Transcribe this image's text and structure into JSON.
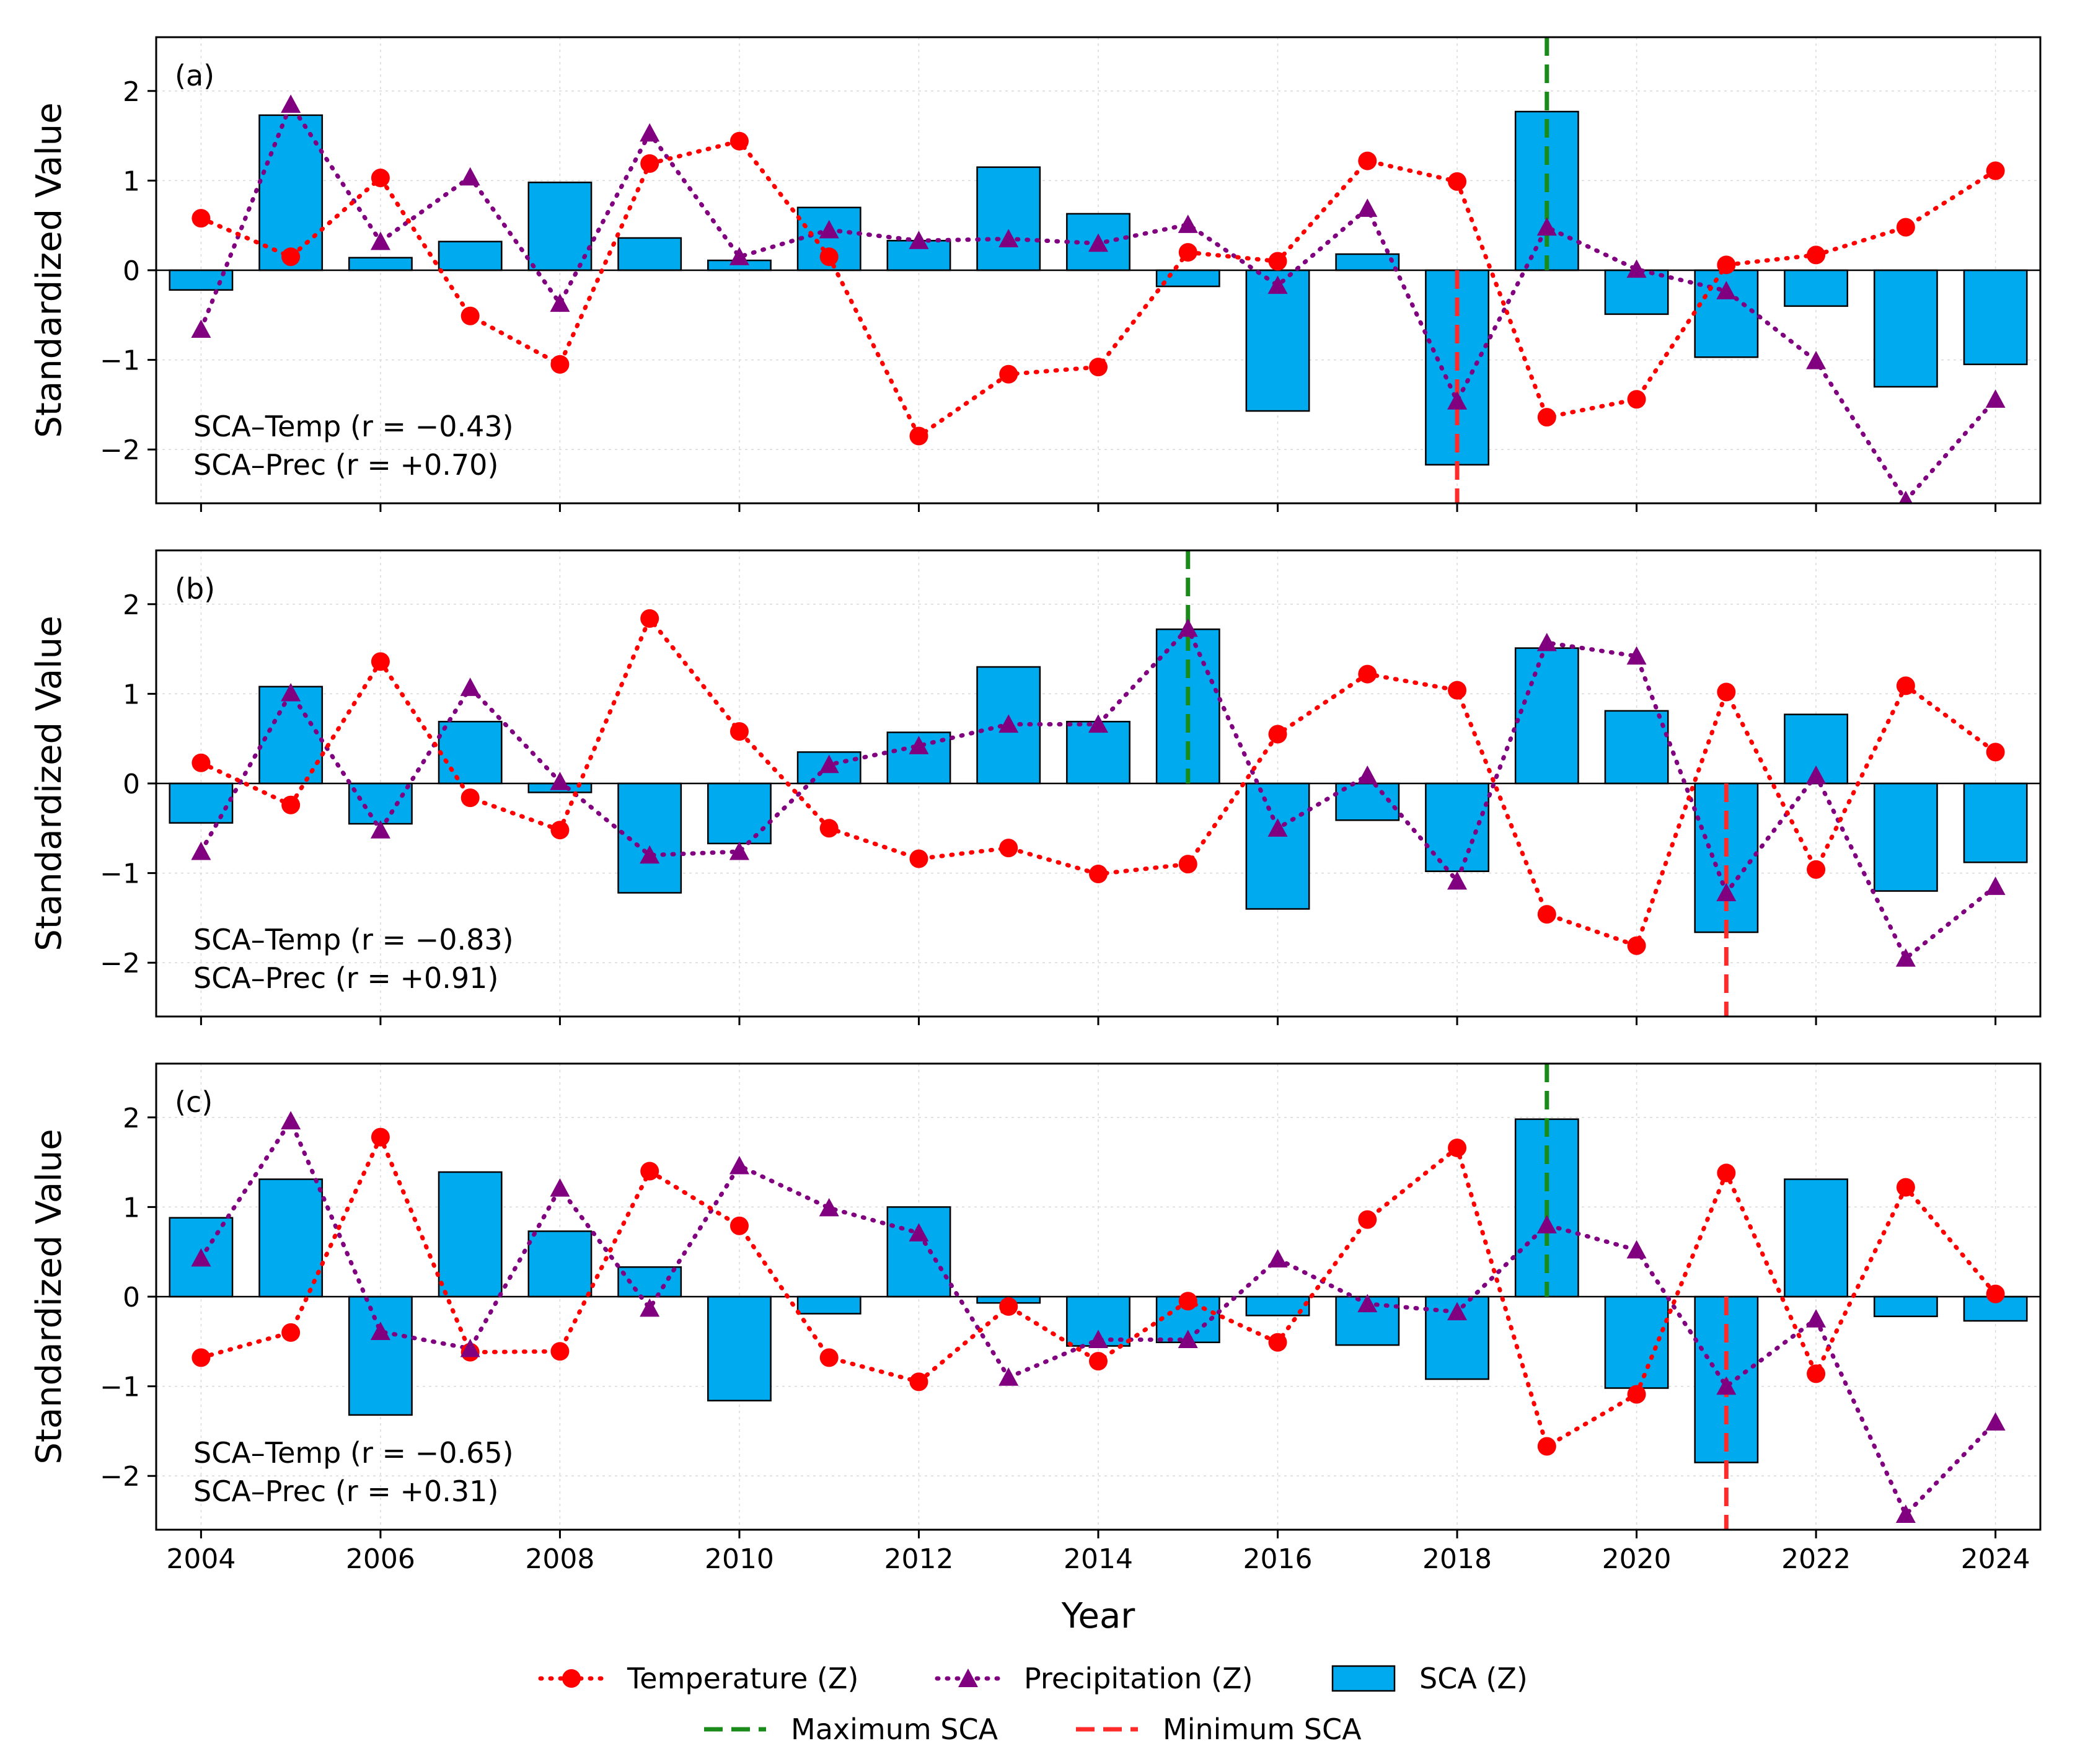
{
  "colors": {
    "temperature": "#ff0000",
    "precipitation": "#800080",
    "sca_fill": "#00aaee",
    "maximum_line": "#1a8a1a",
    "minimum_line": "#ff2a2a"
  },
  "chart_data": {
    "type": "bar+line",
    "xlabel": "Year",
    "ylabel": "Standardized Value",
    "xlim": [
      2003.5,
      2024.5
    ],
    "ylim": [
      -2.6,
      2.6
    ],
    "yticks": [
      -2,
      -1,
      0,
      1,
      2
    ],
    "ytick_labels": [
      "−2",
      "−1",
      "0",
      "1",
      "2"
    ],
    "xticks": [
      2004,
      2006,
      2008,
      2010,
      2012,
      2014,
      2016,
      2018,
      2020,
      2022,
      2024
    ],
    "xtick_labels": [
      "2004",
      "2006",
      "2008",
      "2010",
      "2012",
      "2014",
      "2016",
      "2018",
      "2020",
      "2022",
      "2024"
    ],
    "years": [
      2004,
      2005,
      2006,
      2007,
      2008,
      2009,
      2010,
      2011,
      2012,
      2013,
      2014,
      2015,
      2016,
      2017,
      2018,
      2019,
      2020,
      2021,
      2022,
      2023,
      2024
    ],
    "legend": {
      "temperature": "Temperature (Z)",
      "precipitation": "Precipitation (Z)",
      "sca": "SCA (Z)",
      "maximum": "Maximum SCA",
      "minimum": "Minimum SCA"
    },
    "panels": [
      {
        "tag": "(a)",
        "corr_temp": "SCA–Temp (r = −0.43)",
        "corr_prec": "SCA–Prec (r = +0.70)",
        "max_year": 2019,
        "min_year": 2018,
        "sca": [
          -0.22,
          1.73,
          0.14,
          0.32,
          0.98,
          0.36,
          0.11,
          0.7,
          0.33,
          1.15,
          0.63,
          -0.18,
          -1.57,
          0.18,
          -2.17,
          1.77,
          -0.49,
          -0.97,
          -0.4,
          -1.3,
          -1.05
        ],
        "temperature": [
          0.58,
          0.15,
          1.03,
          -0.51,
          -1.05,
          1.19,
          1.44,
          0.15,
          -1.85,
          -1.16,
          -1.08,
          0.2,
          0.1,
          1.22,
          0.99,
          -1.64,
          -1.44,
          0.06,
          0.17,
          0.48,
          1.11
        ],
        "precipitation": [
          -0.66,
          1.85,
          0.32,
          1.04,
          -0.37,
          1.53,
          0.15,
          0.45,
          0.33,
          0.35,
          0.3,
          0.51,
          -0.17,
          0.69,
          -1.46,
          0.48,
          0.01,
          -0.23,
          -1.01,
          -2.57,
          -1.44
        ]
      },
      {
        "tag": "(b)",
        "corr_temp": "SCA–Temp (r = −0.83)",
        "corr_prec": "SCA–Prec (r = +0.91)",
        "max_year": 2015,
        "min_year": 2021,
        "sca": [
          -0.44,
          1.08,
          -0.45,
          0.69,
          -0.1,
          -1.22,
          -0.67,
          0.35,
          0.57,
          1.3,
          0.69,
          1.72,
          -1.4,
          -0.41,
          -0.98,
          1.51,
          0.81,
          -1.66,
          0.77,
          -1.2,
          -0.88
        ],
        "temperature": [
          0.23,
          -0.24,
          1.36,
          -0.16,
          -0.52,
          1.84,
          0.58,
          -0.5,
          -0.84,
          -0.72,
          -1.01,
          -0.9,
          0.55,
          1.22,
          1.04,
          -1.46,
          -1.81,
          1.02,
          -0.96,
          1.09,
          0.35
        ],
        "precipitation": [
          -0.76,
          1.01,
          -0.52,
          1.07,
          0.02,
          -0.8,
          -0.76,
          0.21,
          0.42,
          0.66,
          0.66,
          1.73,
          -0.5,
          0.09,
          -1.09,
          1.57,
          1.42,
          -1.22,
          0.09,
          -1.95,
          -1.15
        ]
      },
      {
        "tag": "(c)",
        "corr_temp": "SCA–Temp (r = −0.65)",
        "corr_prec": "SCA–Prec (r = +0.31)",
        "max_year": 2019,
        "min_year": 2021,
        "sca": [
          0.88,
          1.31,
          -1.32,
          1.39,
          0.73,
          0.33,
          -1.16,
          -0.19,
          1.0,
          -0.07,
          -0.55,
          -0.51,
          -0.21,
          -0.54,
          -0.92,
          1.98,
          -1.02,
          -1.85,
          1.31,
          -0.22,
          -0.27
        ],
        "temperature": [
          -0.68,
          -0.4,
          1.78,
          -0.62,
          -0.61,
          1.4,
          0.79,
          -0.68,
          -0.95,
          -0.11,
          -0.72,
          -0.05,
          -0.51,
          0.86,
          1.66,
          -1.67,
          -1.09,
          1.38,
          -0.86,
          1.22,
          0.03
        ],
        "precipitation": [
          0.43,
          1.96,
          -0.39,
          -0.58,
          1.21,
          -0.13,
          1.46,
          0.99,
          0.71,
          -0.9,
          -0.48,
          -0.48,
          0.42,
          -0.08,
          -0.17,
          0.8,
          0.52,
          -1.0,
          -0.25,
          -2.43,
          -1.4
        ]
      }
    ]
  }
}
